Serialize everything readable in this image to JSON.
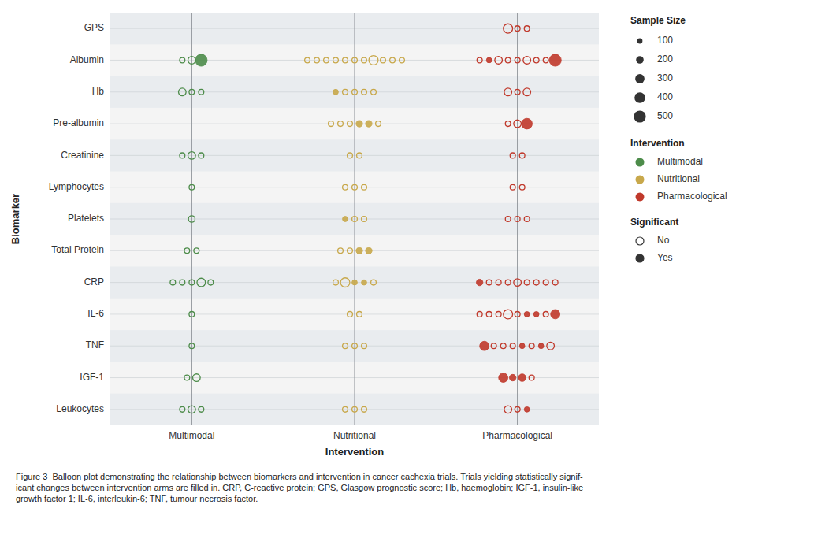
{
  "chart_data": {
    "type": "balloon",
    "xlabel": "Intervention",
    "ylabel": "Biomarker",
    "caption": "Figure 3  Balloon plot demonstrating the relationship between biomarkers and intervention in cancer cachexia trials. Trials yielding statistically signif-\nicant changes between intervention arms are filled in. CRP, C-reactive protein; GPS, Glasgow prognostic score; Hb, haemoglobin; IGF-1, insulin-like\ngrowth factor 1; IL-6, interleukin-6; TNF, tumour necrosis factor.",
    "grid": true,
    "legend": "right",
    "categories": [
      "GPS",
      "Albumin",
      "Hb",
      "Pre-albumin",
      "Creatinine",
      "Lymphocytes",
      "Platelets",
      "Total Protein",
      "CRP",
      "IL-6",
      "TNF",
      "IGF-1",
      "Leukocytes"
    ],
    "size_legend": {
      "title": "Sample Size",
      "values": [
        100,
        200,
        300,
        400,
        500
      ]
    },
    "significance_legend": {
      "title": "Significant",
      "labels": [
        "No",
        "Yes"
      ],
      "values": [
        false,
        true
      ]
    },
    "series": [
      {
        "name": "Multimodal",
        "color": "#4d8c4a",
        "sizes": [
          [],
          [
            100,
            200,
            500
          ],
          [
            200,
            100,
            100
          ],
          [],
          [
            100,
            200,
            100
          ],
          [
            100
          ],
          [
            150
          ],
          [
            100,
            100
          ],
          [
            100,
            100,
            100,
            250,
            100
          ],
          [
            100
          ],
          [
            100
          ],
          [
            100,
            200
          ],
          [
            100,
            200,
            100
          ]
        ],
        "significant": [
          [],
          [
            false,
            false,
            true
          ],
          [
            false,
            false,
            false
          ],
          [],
          [
            false,
            false,
            false
          ],
          [
            false
          ],
          [
            false
          ],
          [
            false,
            false
          ],
          [
            false,
            false,
            false,
            false,
            false
          ],
          [
            false
          ],
          [
            false
          ],
          [
            false,
            false
          ],
          [
            false,
            false,
            false
          ]
        ]
      },
      {
        "name": "Nutritional",
        "color": "#c8a84b",
        "sizes": [
          [],
          [
            100,
            100,
            100,
            100,
            100,
            100,
            100,
            300,
            100,
            100,
            100
          ],
          [
            100,
            100,
            100,
            100,
            100
          ],
          [
            100,
            100,
            100,
            150,
            150,
            100
          ],
          [
            100,
            100
          ],
          [
            100,
            100,
            100
          ],
          [
            100,
            100,
            100
          ],
          [
            100,
            100,
            150,
            150
          ],
          [
            100,
            300,
            100,
            100,
            100
          ],
          [
            100,
            100
          ],
          [
            100,
            100,
            100
          ],
          [],
          [
            100,
            100,
            100
          ]
        ],
        "significant": [
          [],
          [
            false,
            false,
            false,
            false,
            false,
            false,
            false,
            false,
            false,
            false,
            false
          ],
          [
            true,
            false,
            false,
            false,
            false
          ],
          [
            false,
            false,
            false,
            true,
            true,
            false
          ],
          [
            false,
            false
          ],
          [
            false,
            false,
            false
          ],
          [
            true,
            false,
            false
          ],
          [
            false,
            false,
            true,
            true
          ],
          [
            false,
            false,
            true,
            true,
            false
          ],
          [
            false,
            false
          ],
          [
            false,
            false,
            false
          ],
          [],
          [
            false,
            false,
            false
          ]
        ]
      },
      {
        "name": "Pharmacological",
        "color": "#c0392b",
        "sizes": [
          [
            300,
            100,
            100
          ],
          [
            100,
            100,
            200,
            100,
            100,
            200,
            100,
            100,
            500
          ],
          [
            200,
            100,
            200
          ],
          [
            100,
            200,
            400
          ],
          [
            100,
            100
          ],
          [
            100,
            100
          ],
          [
            100,
            100,
            100
          ],
          [],
          [
            150,
            100,
            100,
            100,
            200,
            100,
            100,
            100,
            100
          ],
          [
            100,
            100,
            100,
            300,
            100,
            100,
            100,
            100,
            300
          ],
          [
            300,
            100,
            100,
            100,
            100,
            100,
            100,
            200
          ],
          [
            300,
            150,
            200,
            100
          ],
          [
            200,
            100,
            100
          ]
        ],
        "significant": [
          [
            false,
            false,
            false
          ],
          [
            false,
            true,
            false,
            false,
            false,
            false,
            false,
            false,
            true
          ],
          [
            false,
            false,
            false
          ],
          [
            false,
            false,
            true
          ],
          [
            false,
            false
          ],
          [
            false,
            false
          ],
          [
            false,
            false,
            false
          ],
          [],
          [
            true,
            false,
            false,
            false,
            false,
            false,
            false,
            false,
            false
          ],
          [
            false,
            false,
            false,
            false,
            false,
            true,
            true,
            false,
            true
          ],
          [
            true,
            false,
            false,
            false,
            true,
            false,
            true,
            false
          ],
          [
            true,
            true,
            true,
            false
          ],
          [
            false,
            false,
            true
          ]
        ]
      }
    ]
  }
}
